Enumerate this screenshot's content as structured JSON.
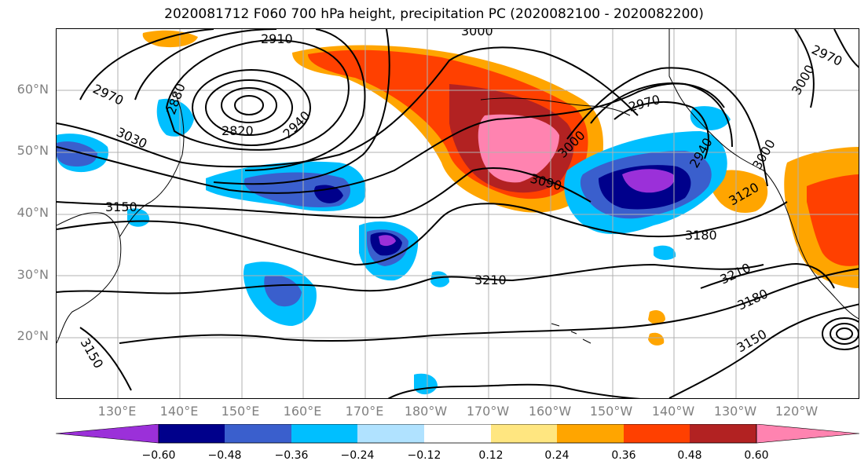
{
  "title": "2020081712 F060 700 hPa height, precipitation PC (2020082100 - 2020082200)",
  "lat_labels": [
    "60°N",
    "50°N",
    "40°N",
    "30°N",
    "20°N"
  ],
  "lon_labels": [
    "130°E",
    "140°E",
    "150°E",
    "160°E",
    "170°E",
    "180°W",
    "170°W",
    "160°W",
    "150°W",
    "140°W",
    "130°W",
    "120°W"
  ],
  "contour_labels": [
    "2910",
    "3000",
    "2970",
    "2970",
    "2880",
    "2820",
    "2940",
    "3030",
    "3150",
    "2970",
    "3000",
    "2940",
    "3000",
    "3000",
    "3090",
    "3120",
    "3180",
    "3210",
    "3210",
    "3180",
    "3150",
    "3150"
  ],
  "colorbar": {
    "ticks": [
      "−0.60",
      "−0.48",
      "−0.36",
      "−0.24",
      "−0.12",
      "0.12",
      "0.24",
      "0.36",
      "0.48",
      "0.60"
    ],
    "colors": [
      "#9b30d9",
      "#00008b",
      "#3a5fcd",
      "#00bfff",
      "#b0e2ff",
      "#ffffff",
      "#ffe680",
      "#ffa500",
      "#ff4000",
      "#b22222",
      "#ff83b0",
      "#ffffff"
    ]
  },
  "map": {
    "extent_lon": [
      120,
      250
    ],
    "extent_lat": [
      10,
      70
    ],
    "grid_lon_step": 10,
    "grid_lat_step": 10
  }
}
